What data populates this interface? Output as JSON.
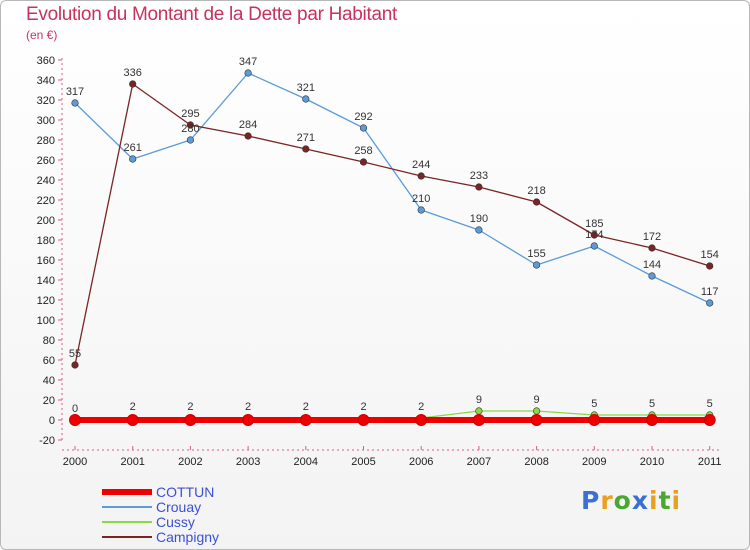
{
  "header": {
    "title": "Evolution du Montant de la Dette par Habitant",
    "unit": "(en €)"
  },
  "logo": {
    "text": "Proxiti",
    "letter_colors": [
      "#3a6fd6",
      "#e8a020",
      "#4aa832",
      "#3a6fd6",
      "#e8a020",
      "#4aa832",
      "#e8a020"
    ]
  },
  "chart_data": {
    "type": "line",
    "title": "Evolution du Montant de la Dette par Habitant",
    "ylabel": "(en €)",
    "ylim": [
      -20,
      360
    ],
    "ystep": 20,
    "grid": false,
    "legend_position": "bottom-left",
    "x": [
      "2000",
      "2001",
      "2002",
      "2003",
      "2004",
      "2005",
      "2006",
      "2007",
      "2008",
      "2009",
      "2010",
      "2011"
    ],
    "series": [
      {
        "name": "COTTUN",
        "color": "#ee0000",
        "values": [
          0,
          0,
          0,
          0,
          0,
          0,
          0,
          0,
          0,
          0,
          0,
          0
        ],
        "labels": [
          "",
          "",
          "",
          "",
          "",
          "",
          "",
          "",
          "",
          "",
          "",
          ""
        ]
      },
      {
        "name": "Crouay",
        "color": "#5a9bd8",
        "values": [
          317,
          261,
          280,
          347,
          321,
          292,
          210,
          190,
          155,
          174,
          144,
          117
        ],
        "labels": [
          "317",
          "261",
          "280",
          "347",
          "321",
          "292",
          "210",
          "190",
          "155",
          "174",
          "144",
          "117"
        ]
      },
      {
        "name": "Cussy",
        "color": "#88d848",
        "values": [
          0,
          2,
          2,
          2,
          2,
          2,
          2,
          9,
          9,
          5,
          5,
          5
        ],
        "labels": [
          "0",
          "2",
          "2",
          "2",
          "2",
          "2",
          "2",
          "9",
          "9",
          "5",
          "5",
          "5"
        ]
      },
      {
        "name": "Campigny",
        "color": "#7a2424",
        "values": [
          55,
          336,
          295,
          284,
          271,
          258,
          244,
          233,
          218,
          185,
          172,
          154
        ],
        "labels": [
          "55",
          "336",
          "295",
          "284",
          "271",
          "258",
          "244",
          "233",
          "218",
          "185",
          "172",
          "154"
        ]
      }
    ]
  }
}
